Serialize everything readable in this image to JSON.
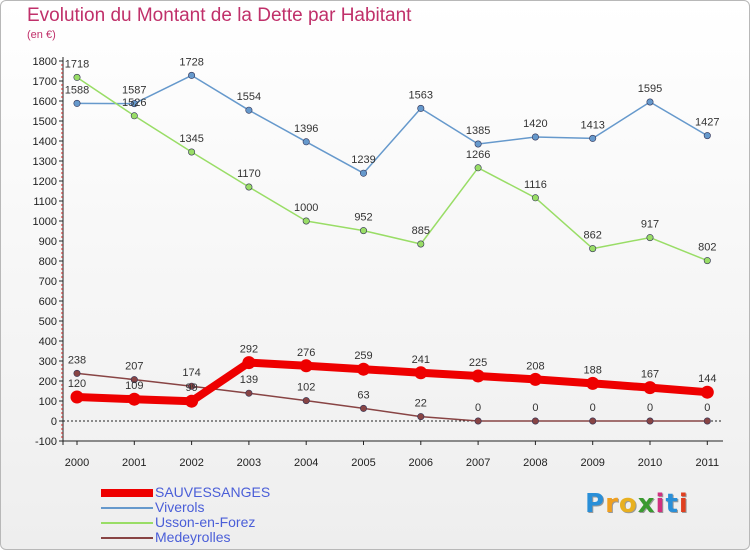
{
  "title": "Evolution du Montant de la Dette par Habitant",
  "unit": "(en €)",
  "logo": {
    "text": "Proxiti",
    "letters": [
      "P",
      "r",
      "o",
      "x",
      "i",
      "t",
      "i"
    ],
    "colors": [
      "#2a8fd8",
      "#f0a020",
      "#e8b020",
      "#3a9a30",
      "#d03080",
      "#2a8fd8",
      "#e04020"
    ]
  },
  "chart_data": {
    "type": "line",
    "title": "Evolution du Montant de la Dette par Habitant",
    "ylabel": "(en €)",
    "xlabel": "",
    "categories": [
      "2000",
      "2001",
      "2002",
      "2003",
      "2004",
      "2005",
      "2006",
      "2007",
      "2008",
      "2009",
      "2010",
      "2011"
    ],
    "ylim": [
      -100,
      1800
    ],
    "yticks": [
      -100,
      0,
      100,
      200,
      300,
      400,
      500,
      600,
      700,
      800,
      900,
      1000,
      1100,
      1200,
      1300,
      1400,
      1500,
      1600,
      1700,
      1800
    ],
    "grid": false,
    "legend_position": "bottom-left",
    "series": [
      {
        "name": "SAUVESSANGES",
        "color": "#ee0000",
        "values": [
          120,
          109,
          99,
          292,
          276,
          259,
          241,
          225,
          208,
          188,
          167,
          144
        ],
        "labels": [
          "120",
          "109",
          "99",
          "292",
          "276",
          "259",
          "241",
          "225",
          "208",
          "188",
          "167",
          "144"
        ]
      },
      {
        "name": "Viverols",
        "color": "#6699cc",
        "values": [
          1588,
          1587,
          1728,
          1554,
          1396,
          1239,
          1563,
          1385,
          1420,
          1413,
          1595,
          1427
        ],
        "labels": [
          "1588",
          "1587",
          "1728",
          "1554",
          "1396",
          "1239",
          "1563",
          "1385",
          "1420",
          "1413",
          "1595",
          "1427"
        ]
      },
      {
        "name": "Usson-en-Forez",
        "color": "#99dd66",
        "values": [
          1718,
          1526,
          1345,
          1170,
          1000,
          952,
          885,
          1266,
          1116,
          862,
          917,
          802
        ],
        "labels": [
          "1718",
          "1526",
          "1345",
          "1170",
          "1000",
          "952",
          "885",
          "1266",
          "1116",
          "862",
          "917",
          "802"
        ]
      },
      {
        "name": "Medeyrolles",
        "color": "#884444",
        "values": [
          238,
          207,
          174,
          139,
          102,
          63,
          22,
          0,
          0,
          0,
          0,
          0
        ],
        "labels": [
          "238",
          "207",
          "174",
          "139",
          "102",
          "63",
          "22",
          "0",
          "0",
          "0",
          "0",
          "0"
        ]
      }
    ]
  }
}
